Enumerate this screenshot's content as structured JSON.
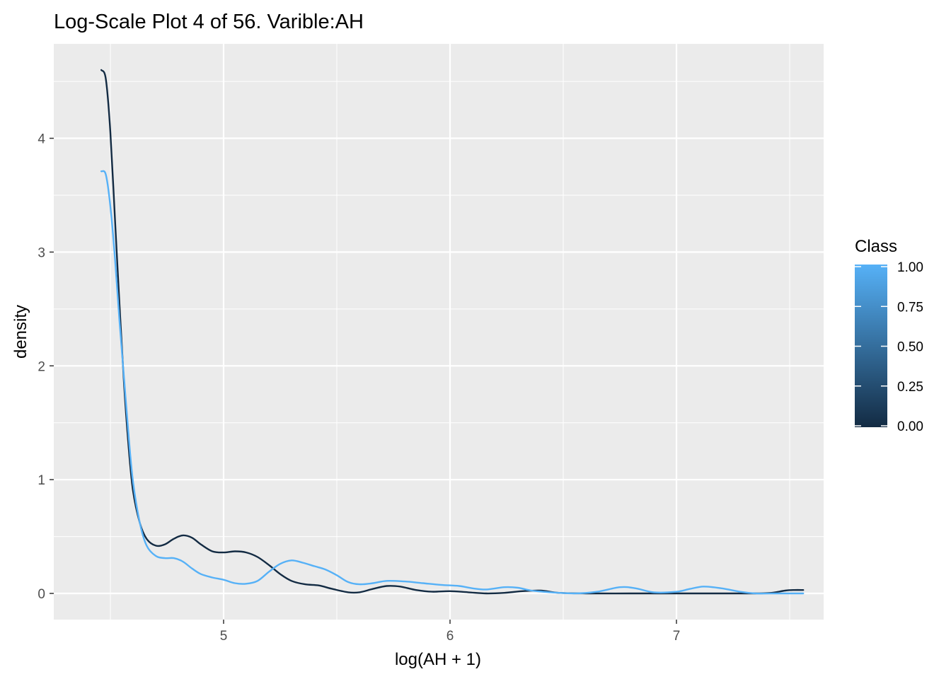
{
  "chart_data": {
    "type": "line",
    "title": "Log-Scale Plot 4 of 56. Varible:AH",
    "xlabel": "log(AH + 1)",
    "ylabel": "density",
    "xlim": [
      4.25,
      7.65
    ],
    "ylim": [
      -0.23,
      4.83
    ],
    "x_ticks": [
      5,
      6,
      7
    ],
    "y_ticks": [
      0,
      1,
      2,
      3,
      4
    ],
    "grid": true,
    "legend": {
      "title": "Class",
      "type": "colorbar",
      "labels": [
        "1.00",
        "0.75",
        "0.50",
        "0.25",
        "0.00"
      ],
      "values": [
        1.0,
        0.75,
        0.5,
        0.25,
        0.0
      ],
      "color_low": "#132B43",
      "color_high": "#56B1F7",
      "placement": "right"
    },
    "series": [
      {
        "class_value": 0,
        "color": "#132B43",
        "points": [
          [
            4.46,
            4.6
          ],
          [
            4.48,
            4.52
          ],
          [
            4.5,
            4.05
          ],
          [
            4.52,
            3.3
          ],
          [
            4.54,
            2.55
          ],
          [
            4.56,
            1.85
          ],
          [
            4.58,
            1.3
          ],
          [
            4.6,
            0.9
          ],
          [
            4.63,
            0.62
          ],
          [
            4.66,
            0.48
          ],
          [
            4.7,
            0.42
          ],
          [
            4.74,
            0.43
          ],
          [
            4.78,
            0.48
          ],
          [
            4.82,
            0.51
          ],
          [
            4.86,
            0.49
          ],
          [
            4.9,
            0.43
          ],
          [
            4.95,
            0.37
          ],
          [
            5.0,
            0.36
          ],
          [
            5.05,
            0.37
          ],
          [
            5.1,
            0.36
          ],
          [
            5.15,
            0.32
          ],
          [
            5.2,
            0.25
          ],
          [
            5.25,
            0.17
          ],
          [
            5.3,
            0.11
          ],
          [
            5.36,
            0.08
          ],
          [
            5.42,
            0.07
          ],
          [
            5.48,
            0.04
          ],
          [
            5.55,
            0.01
          ],
          [
            5.6,
            0.01
          ],
          [
            5.66,
            0.04
          ],
          [
            5.72,
            0.065
          ],
          [
            5.78,
            0.06
          ],
          [
            5.85,
            0.03
          ],
          [
            5.92,
            0.015
          ],
          [
            6.0,
            0.02
          ],
          [
            6.08,
            0.01
          ],
          [
            6.16,
            0.0
          ],
          [
            6.24,
            0.005
          ],
          [
            6.32,
            0.02
          ],
          [
            6.4,
            0.025
          ],
          [
            6.48,
            0.005
          ],
          [
            6.6,
            0.0
          ],
          [
            6.8,
            0.0
          ],
          [
            7.0,
            0.0
          ],
          [
            7.2,
            0.0
          ],
          [
            7.35,
            0.0
          ],
          [
            7.42,
            0.005
          ],
          [
            7.48,
            0.025
          ],
          [
            7.52,
            0.03
          ],
          [
            7.56,
            0.03
          ]
        ]
      },
      {
        "class_value": 1,
        "color": "#56B1F7",
        "points": [
          [
            4.46,
            3.71
          ],
          [
            4.48,
            3.68
          ],
          [
            4.5,
            3.4
          ],
          [
            4.52,
            2.95
          ],
          [
            4.54,
            2.4
          ],
          [
            4.56,
            1.9
          ],
          [
            4.58,
            1.4
          ],
          [
            4.6,
            0.98
          ],
          [
            4.63,
            0.62
          ],
          [
            4.66,
            0.42
          ],
          [
            4.7,
            0.33
          ],
          [
            4.74,
            0.31
          ],
          [
            4.78,
            0.31
          ],
          [
            4.82,
            0.28
          ],
          [
            4.86,
            0.22
          ],
          [
            4.9,
            0.17
          ],
          [
            4.95,
            0.14
          ],
          [
            5.0,
            0.12
          ],
          [
            5.05,
            0.09
          ],
          [
            5.1,
            0.085
          ],
          [
            5.15,
            0.11
          ],
          [
            5.2,
            0.19
          ],
          [
            5.25,
            0.26
          ],
          [
            5.3,
            0.29
          ],
          [
            5.35,
            0.27
          ],
          [
            5.4,
            0.24
          ],
          [
            5.45,
            0.21
          ],
          [
            5.5,
            0.16
          ],
          [
            5.55,
            0.1
          ],
          [
            5.6,
            0.08
          ],
          [
            5.66,
            0.09
          ],
          [
            5.72,
            0.11
          ],
          [
            5.8,
            0.105
          ],
          [
            5.88,
            0.09
          ],
          [
            5.96,
            0.075
          ],
          [
            6.04,
            0.065
          ],
          [
            6.1,
            0.045
          ],
          [
            6.16,
            0.035
          ],
          [
            6.24,
            0.055
          ],
          [
            6.3,
            0.05
          ],
          [
            6.36,
            0.025
          ],
          [
            6.44,
            0.01
          ],
          [
            6.55,
            0.0
          ],
          [
            6.65,
            0.015
          ],
          [
            6.75,
            0.055
          ],
          [
            6.82,
            0.045
          ],
          [
            6.9,
            0.01
          ],
          [
            7.0,
            0.015
          ],
          [
            7.06,
            0.04
          ],
          [
            7.12,
            0.06
          ],
          [
            7.2,
            0.045
          ],
          [
            7.28,
            0.015
          ],
          [
            7.35,
            0.0
          ],
          [
            7.45,
            0.0
          ],
          [
            7.56,
            0.0
          ]
        ]
      }
    ]
  }
}
